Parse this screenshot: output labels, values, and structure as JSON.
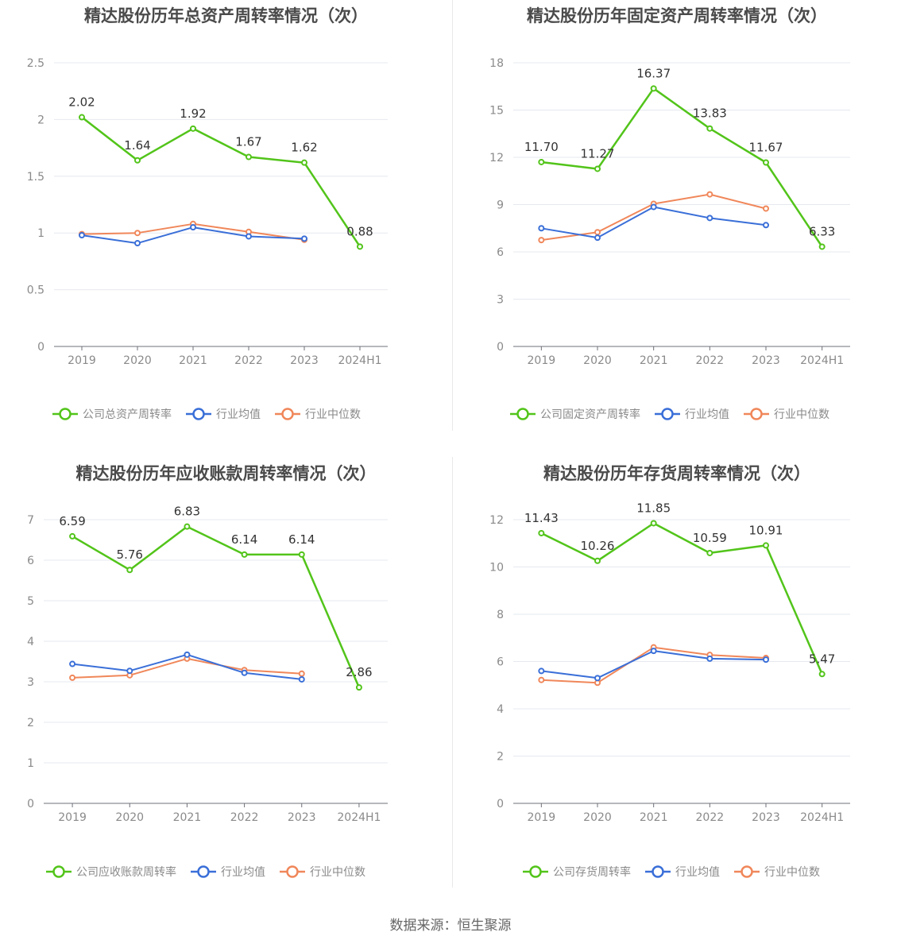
{
  "source": "数据来源：恒生聚源",
  "colors": {
    "company": "#52c41a",
    "industry_avg": "#3a6fd8",
    "industry_median": "#f0875a"
  },
  "chart_data": [
    {
      "type": "line",
      "title": "精达股份历年总资产周转率情况（次）",
      "categories": [
        "2019",
        "2020",
        "2021",
        "2022",
        "2023",
        "2024H1"
      ],
      "ylim": [
        0,
        2.5
      ],
      "yticks": [
        "0",
        "0.5",
        "1",
        "1.5",
        "2",
        "2.5"
      ],
      "grid": true,
      "legend_position": "bottom",
      "series": [
        {
          "name": "公司总资产周转率",
          "values": [
            2.02,
            1.64,
            1.92,
            1.67,
            1.62,
            0.88
          ],
          "labels": [
            "2.02",
            "1.64",
            "1.92",
            "1.67",
            "1.62",
            "0.88"
          ]
        },
        {
          "name": "行业均值",
          "values": [
            0.98,
            0.91,
            1.05,
            0.97,
            0.95,
            null
          ]
        },
        {
          "name": "行业中位数",
          "values": [
            0.99,
            1.0,
            1.08,
            1.01,
            0.94,
            null
          ]
        }
      ]
    },
    {
      "type": "line",
      "title": "精达股份历年固定资产周转率情况（次）",
      "categories": [
        "2019",
        "2020",
        "2021",
        "2022",
        "2023",
        "2024H1"
      ],
      "ylim": [
        0,
        18
      ],
      "yticks": [
        "0",
        "3",
        "6",
        "9",
        "12",
        "15",
        "18"
      ],
      "grid": true,
      "legend_position": "bottom",
      "series": [
        {
          "name": "公司固定资产周转率",
          "values": [
            11.7,
            11.27,
            16.37,
            13.83,
            11.67,
            6.33
          ],
          "labels": [
            "11.70",
            "11.27",
            "16.37",
            "13.83",
            "11.67",
            "6.33"
          ]
        },
        {
          "name": "行业均值",
          "values": [
            7.5,
            6.9,
            8.85,
            8.15,
            7.7,
            null
          ]
        },
        {
          "name": "行业中位数",
          "values": [
            6.75,
            7.25,
            9.05,
            9.65,
            8.75,
            null
          ]
        }
      ]
    },
    {
      "type": "line",
      "title": "精达股份历年应收账款周转率情况（次）",
      "categories": [
        "2019",
        "2020",
        "2021",
        "2022",
        "2023",
        "2024H1"
      ],
      "ylim": [
        0,
        7
      ],
      "yticks": [
        "0",
        "1",
        "2",
        "3",
        "4",
        "5",
        "6",
        "7"
      ],
      "grid": true,
      "legend_position": "bottom",
      "series": [
        {
          "name": "公司应收账款周转率",
          "values": [
            6.59,
            5.76,
            6.83,
            6.14,
            6.14,
            2.86
          ],
          "labels": [
            "6.59",
            "5.76",
            "6.83",
            "6.14",
            "6.14",
            "2.86"
          ]
        },
        {
          "name": "行业均值",
          "values": [
            3.44,
            3.27,
            3.67,
            3.22,
            3.06,
            null
          ]
        },
        {
          "name": "行业中位数",
          "values": [
            3.1,
            3.16,
            3.57,
            3.29,
            3.2,
            null
          ]
        }
      ]
    },
    {
      "type": "line",
      "title": "精达股份历年存货周转率情况（次）",
      "categories": [
        "2019",
        "2020",
        "2021",
        "2022",
        "2023",
        "2024H1"
      ],
      "ylim": [
        0,
        12
      ],
      "yticks": [
        "0",
        "2",
        "4",
        "6",
        "8",
        "10",
        "12"
      ],
      "grid": true,
      "legend_position": "bottom",
      "series": [
        {
          "name": "公司存货周转率",
          "values": [
            11.43,
            10.26,
            11.85,
            10.59,
            10.91,
            5.47
          ],
          "labels": [
            "11.43",
            "10.26",
            "11.85",
            "10.59",
            "10.91",
            "5.47"
          ]
        },
        {
          "name": "行业均值",
          "values": [
            5.6,
            5.3,
            6.45,
            6.12,
            6.08,
            null
          ]
        },
        {
          "name": "行业中位数",
          "values": [
            5.22,
            5.1,
            6.6,
            6.28,
            6.15,
            null
          ]
        }
      ]
    }
  ]
}
